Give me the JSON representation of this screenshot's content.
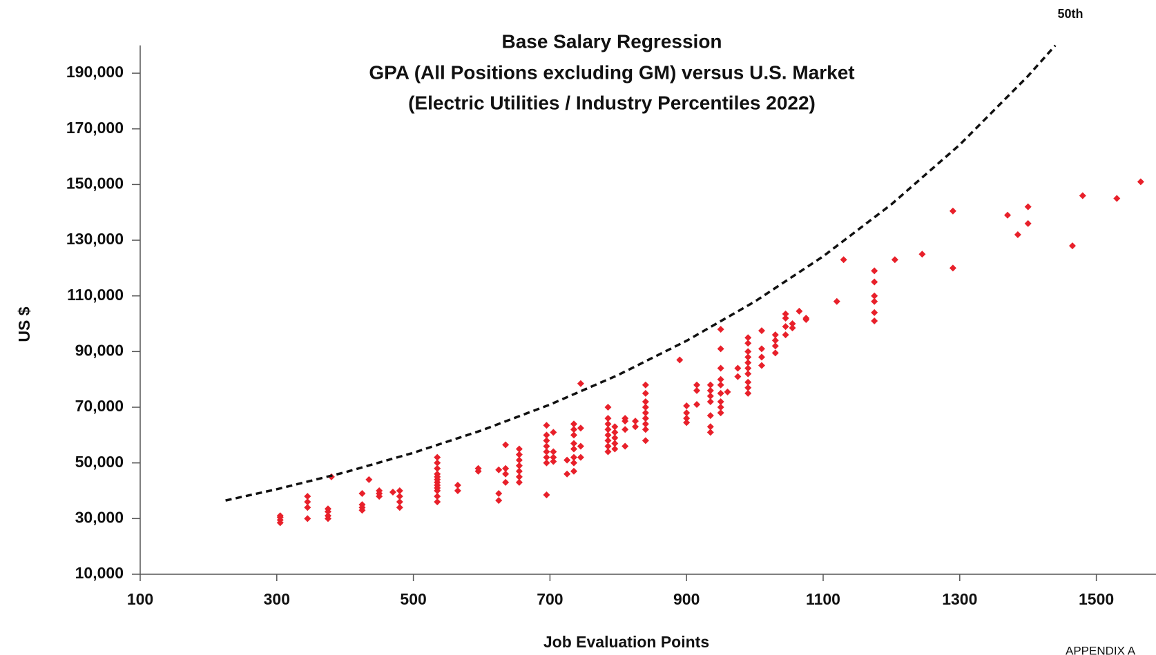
{
  "chart_data": {
    "type": "scatter",
    "title": [
      "Base Salary Regression",
      "GPA (All Positions excluding GM) versus U.S. Market",
      "(Electric Utilities / Industry Percentiles 2022)"
    ],
    "x_label": "Job Evaluation Points",
    "y_label": "US $",
    "annotation": "APPENDIX A",
    "xlim": [
      100,
      1600
    ],
    "ylim": [
      10000,
      200000
    ],
    "xticks": [
      100,
      300,
      500,
      700,
      900,
      1100,
      1300,
      1500
    ],
    "yticks": [
      {
        "value": 10000,
        "label": "10,000"
      },
      {
        "value": 30000,
        "label": "30,000"
      },
      {
        "value": 50000,
        "label": "50,000"
      },
      {
        "value": 70000,
        "label": "70,000"
      },
      {
        "value": 90000,
        "label": "90,000"
      },
      {
        "value": 110000,
        "label": "110,000"
      },
      {
        "value": 130000,
        "label": "130,000"
      },
      {
        "value": 150000,
        "label": "150,000"
      },
      {
        "value": 170000,
        "label": "170,000"
      },
      {
        "value": 190000,
        "label": "190,000"
      }
    ],
    "series": [
      {
        "type": "scatter",
        "color": "#e8202a",
        "x": [
          305,
          305,
          305,
          305,
          345,
          345,
          345,
          345,
          375,
          375,
          375,
          375,
          380,
          425,
          425,
          425,
          425,
          435,
          450,
          450,
          450,
          470,
          480,
          480,
          480,
          480,
          535,
          535,
          535,
          535,
          535,
          535,
          535,
          535,
          535,
          535,
          535,
          535,
          565,
          565,
          595,
          595,
          625,
          625,
          625,
          635,
          635,
          635,
          635,
          655,
          655,
          655,
          655,
          655,
          655,
          655,
          695,
          695,
          695,
          695,
          695,
          695,
          695,
          695,
          705,
          705,
          705,
          705,
          725,
          725,
          735,
          735,
          735,
          735,
          735,
          735,
          735,
          735,
          745,
          745,
          745,
          745,
          785,
          785,
          785,
          785,
          785,
          785,
          785,
          785,
          795,
          795,
          795,
          795,
          795,
          810,
          810,
          810,
          810,
          825,
          825,
          840,
          840,
          840,
          840,
          840,
          840,
          840,
          840,
          840,
          890,
          900,
          900,
          900,
          900,
          915,
          915,
          915,
          935,
          935,
          935,
          935,
          935,
          935,
          935,
          950,
          950,
          950,
          950,
          950,
          950,
          950,
          950,
          950,
          960,
          975,
          975,
          990,
          990,
          990,
          990,
          990,
          990,
          990,
          990,
          990,
          990,
          1010,
          1010,
          1010,
          1010,
          1030,
          1030,
          1030,
          1030,
          1045,
          1045,
          1045,
          1045,
          1055,
          1055,
          1065,
          1075,
          1075,
          1120,
          1130,
          1175,
          1175,
          1175,
          1175,
          1175,
          1175,
          1205,
          1245,
          1290,
          1290,
          1370,
          1385,
          1400,
          1400,
          1465,
          1480,
          1530,
          1565
        ],
        "values": [
          28500,
          29500,
          30500,
          31000,
          30000,
          34000,
          36000,
          38000,
          30000,
          31000,
          32500,
          33500,
          45000,
          33000,
          34000,
          35000,
          39000,
          44000,
          38000,
          39000,
          40000,
          39500,
          34000,
          36000,
          38000,
          40000,
          36000,
          38000,
          40000,
          41000,
          42000,
          43000,
          44000,
          45000,
          46000,
          48000,
          50000,
          52000,
          40000,
          42000,
          47000,
          48000,
          36500,
          39000,
          47500,
          43000,
          46000,
          48000,
          56500,
          43000,
          45000,
          47000,
          49000,
          51000,
          53000,
          55000,
          38500,
          50000,
          52000,
          54000,
          56000,
          58000,
          60000,
          63500,
          50500,
          52000,
          54000,
          61000,
          46000,
          51000,
          47000,
          50000,
          52000,
          55000,
          57000,
          60000,
          62000,
          64000,
          52000,
          56000,
          62500,
          78500,
          54000,
          56000,
          58000,
          60000,
          62000,
          64000,
          66000,
          70000,
          55000,
          57000,
          59000,
          61000,
          63000,
          56000,
          62000,
          65000,
          66000,
          63000,
          65000,
          58000,
          62000,
          64000,
          66000,
          68000,
          70000,
          72000,
          75000,
          78000,
          87000,
          64500,
          66000,
          68000,
          70500,
          71000,
          76000,
          78000,
          61000,
          63000,
          67000,
          72000,
          74000,
          76000,
          78000,
          68000,
          70000,
          72000,
          75000,
          78000,
          80000,
          84000,
          91000,
          98000,
          75500,
          81000,
          84000,
          75000,
          77000,
          79000,
          82000,
          84000,
          86000,
          88000,
          90000,
          93000,
          95000,
          85000,
          88000,
          91000,
          97500,
          89500,
          92000,
          94000,
          96000,
          96000,
          99000,
          102000,
          103500,
          98500,
          100000,
          104500,
          101500,
          102000,
          108000,
          123000,
          101000,
          104000,
          108000,
          110000,
          115000,
          119000,
          123000,
          125000,
          120000,
          140500,
          139000,
          132000,
          136000,
          142000,
          128000,
          146000,
          145000,
          151000
        ]
      },
      {
        "type": "line",
        "name": "50th",
        "color": "#111111",
        "x": [
          225,
          300,
          400,
          500,
          600,
          700,
          800,
          900,
          1000,
          1100,
          1200,
          1300,
          1400,
          1440
        ],
        "values": [
          36500,
          40540,
          46630,
          53630,
          61690,
          70950,
          81600,
          93870,
          107970,
          124200,
          142900,
          164300,
          189000,
          200000
        ]
      }
    ]
  }
}
